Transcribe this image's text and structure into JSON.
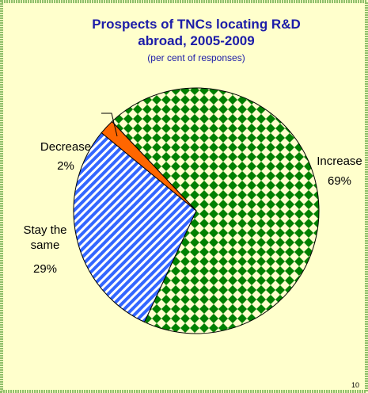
{
  "chart_data": {
    "type": "pie",
    "title": "Prospects of TNCs locating R&D abroad, 2005-2009",
    "subtitle": "(per cent of responses)",
    "categories": [
      "Increase",
      "Stay the same",
      "Decrease"
    ],
    "values": [
      69,
      29,
      2
    ],
    "value_labels": [
      "69%",
      "29%",
      "2%"
    ],
    "colors": [
      "#008000",
      "#3366ff",
      "#ff6600"
    ]
  },
  "page_number": "10"
}
